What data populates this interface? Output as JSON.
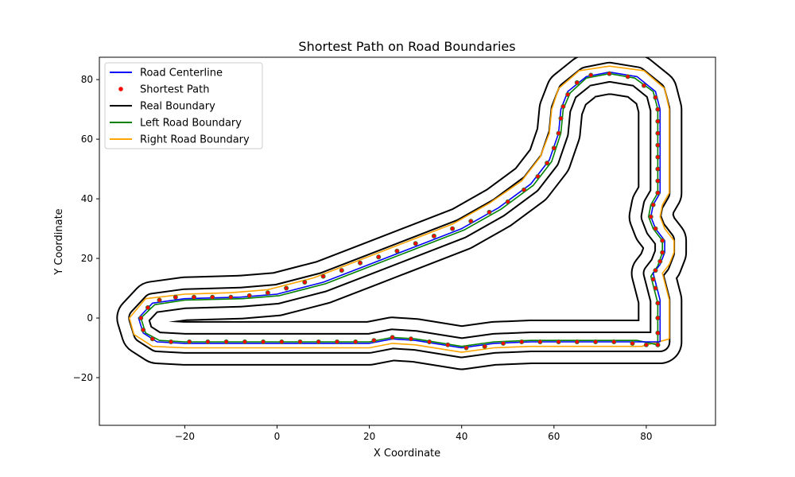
{
  "chart_data": {
    "type": "line",
    "title": "Shortest Path on Road Boundaries",
    "xlabel": "X Coordinate",
    "ylabel": "Y Coordinate",
    "xlim": [
      -38.5,
      95
    ],
    "ylim": [
      -36,
      87.5
    ],
    "xticks": [
      -20,
      0,
      20,
      40,
      60,
      80
    ],
    "yticks": [
      -20,
      0,
      20,
      40,
      60,
      80
    ],
    "xtick_labels": [
      "−20",
      "0",
      "20",
      "40",
      "60",
      "80"
    ],
    "ytick_labels": [
      "−20",
      "0",
      "20",
      "40",
      "60",
      "80"
    ],
    "grid": false,
    "legend_position": "upper-left",
    "colors": {
      "centerline": "#0000ff",
      "shortest_path_fill": "#ff0000",
      "shortest_path_edge": "#2e7d32",
      "real_boundary": "#000000",
      "left_boundary": "#008000",
      "right_boundary": "#ffa500"
    },
    "legend": [
      {
        "label": "Road Centerline",
        "key": "centerline",
        "kind": "line"
      },
      {
        "label": "Shortest Path",
        "key": "shortest_path_fill",
        "kind": "marker"
      },
      {
        "label": "Real Boundary",
        "key": "real_boundary",
        "kind": "line"
      },
      {
        "label": "Left Road Boundary",
        "key": "left_boundary",
        "kind": "line"
      },
      {
        "label": "Right Road Boundary",
        "key": "right_boundary",
        "kind": "line"
      }
    ],
    "series": [
      {
        "name": "Road Centerline",
        "key": "centerline",
        "points": [
          [
            83,
            -8
          ],
          [
            83,
            0
          ],
          [
            83,
            6
          ],
          [
            82,
            12
          ],
          [
            81.5,
            15
          ],
          [
            83,
            18
          ],
          [
            84,
            22
          ],
          [
            84,
            26
          ],
          [
            82,
            30
          ],
          [
            81,
            34
          ],
          [
            81.5,
            38
          ],
          [
            83,
            42
          ],
          [
            83,
            50
          ],
          [
            83,
            60
          ],
          [
            83,
            70
          ],
          [
            82,
            76
          ],
          [
            78,
            81
          ],
          [
            72,
            82.5
          ],
          [
            67,
            81
          ],
          [
            63,
            76
          ],
          [
            61.5,
            70
          ],
          [
            61,
            62
          ],
          [
            59,
            53
          ],
          [
            55,
            45
          ],
          [
            48,
            37
          ],
          [
            40,
            30
          ],
          [
            30,
            24
          ],
          [
            20,
            18
          ],
          [
            10,
            12
          ],
          [
            0,
            8
          ],
          [
            -8,
            7
          ],
          [
            -20,
            6.5
          ],
          [
            -27,
            5
          ],
          [
            -30,
            0
          ],
          [
            -29,
            -5
          ],
          [
            -26,
            -8
          ],
          [
            -20,
            -8.5
          ],
          [
            0,
            -8.5
          ],
          [
            20,
            -8.5
          ],
          [
            25,
            -7
          ],
          [
            30,
            -7.5
          ],
          [
            40,
            -10
          ],
          [
            47,
            -8.5
          ],
          [
            55,
            -8
          ],
          [
            70,
            -8
          ],
          [
            78,
            -8
          ],
          [
            83,
            -8
          ]
        ]
      },
      {
        "name": "Left Road Boundary",
        "key": "left_boundary",
        "points": [
          [
            82.5,
            -9
          ],
          [
            82.5,
            0
          ],
          [
            82.5,
            5
          ],
          [
            81.5,
            11
          ],
          [
            81,
            14
          ],
          [
            82.5,
            17.5
          ],
          [
            83.5,
            22
          ],
          [
            83.5,
            26
          ],
          [
            81.5,
            30
          ],
          [
            80.5,
            34
          ],
          [
            81,
            38
          ],
          [
            82.5,
            42
          ],
          [
            82.5,
            50
          ],
          [
            82.5,
            60
          ],
          [
            82.5,
            70
          ],
          [
            81.5,
            76
          ],
          [
            77.5,
            80.5
          ],
          [
            72,
            82
          ],
          [
            67,
            80.5
          ],
          [
            63.5,
            75.5
          ],
          [
            62,
            70
          ],
          [
            61.5,
            62
          ],
          [
            59.5,
            52.5
          ],
          [
            55.5,
            44.5
          ],
          [
            48.5,
            36.5
          ],
          [
            40.5,
            29.5
          ],
          [
            30.5,
            23.5
          ],
          [
            20.5,
            17.5
          ],
          [
            10.5,
            11.5
          ],
          [
            0.5,
            7.5
          ],
          [
            -7.5,
            6.5
          ],
          [
            -20,
            6
          ],
          [
            -26.5,
            4.5
          ],
          [
            -29.5,
            0
          ],
          [
            -28.5,
            -5
          ],
          [
            -25.5,
            -7.5
          ],
          [
            -20,
            -8
          ],
          [
            0,
            -8
          ],
          [
            20,
            -8
          ],
          [
            25,
            -6.5
          ],
          [
            30,
            -7
          ],
          [
            40,
            -9.5
          ],
          [
            47,
            -8
          ],
          [
            55,
            -7.5
          ],
          [
            70,
            -7.5
          ],
          [
            78,
            -7.5
          ],
          [
            82.5,
            -9
          ]
        ]
      },
      {
        "name": "Right Road Boundary",
        "key": "right_boundary",
        "points": [
          [
            85,
            -7
          ],
          [
            85,
            0
          ],
          [
            85,
            6
          ],
          [
            84,
            12
          ],
          [
            83.5,
            15
          ],
          [
            85,
            18
          ],
          [
            86,
            22
          ],
          [
            86,
            26
          ],
          [
            84,
            30
          ],
          [
            83,
            34
          ],
          [
            83.5,
            38
          ],
          [
            85,
            42
          ],
          [
            85,
            50
          ],
          [
            85,
            60
          ],
          [
            85,
            70
          ],
          [
            84,
            77
          ],
          [
            79.5,
            83
          ],
          [
            72,
            84.5
          ],
          [
            65.5,
            83
          ],
          [
            61,
            77
          ],
          [
            59.5,
            70
          ],
          [
            59,
            62
          ],
          [
            57,
            54
          ],
          [
            53,
            46
          ],
          [
            46,
            38.5
          ],
          [
            38,
            31.5
          ],
          [
            28,
            25.5
          ],
          [
            18,
            19.5
          ],
          [
            8,
            13.5
          ],
          [
            -2,
            9.5
          ],
          [
            -10,
            8.5
          ],
          [
            -20,
            8
          ],
          [
            -28.5,
            6.5
          ],
          [
            -32,
            0
          ],
          [
            -31,
            -5.5
          ],
          [
            -27,
            -9.5
          ],
          [
            -20,
            -10
          ],
          [
            0,
            -10
          ],
          [
            20,
            -10
          ],
          [
            25,
            -8.5
          ],
          [
            30,
            -9
          ],
          [
            40,
            -11.5
          ],
          [
            47,
            -10
          ],
          [
            55,
            -9.5
          ],
          [
            70,
            -9.5
          ],
          [
            79,
            -9.5
          ],
          [
            85,
            -7
          ]
        ]
      }
    ],
    "shortest_path": [
      [
        82.5,
        -9
      ],
      [
        82.5,
        -5
      ],
      [
        82.5,
        0
      ],
      [
        82.5,
        5
      ],
      [
        82,
        10
      ],
      [
        81.5,
        13
      ],
      [
        82,
        16
      ],
      [
        83,
        19
      ],
      [
        83.5,
        22
      ],
      [
        83.5,
        26
      ],
      [
        82,
        30
      ],
      [
        81,
        34
      ],
      [
        81.5,
        38
      ],
      [
        82.5,
        42
      ],
      [
        82.5,
        46
      ],
      [
        82.5,
        50
      ],
      [
        82.5,
        54
      ],
      [
        82.5,
        58
      ],
      [
        82.5,
        62
      ],
      [
        82.5,
        66
      ],
      [
        82.5,
        70
      ],
      [
        82,
        74
      ],
      [
        79.5,
        78
      ],
      [
        76,
        81
      ],
      [
        72,
        82
      ],
      [
        68,
        81.5
      ],
      [
        65,
        79
      ],
      [
        63,
        75
      ],
      [
        62,
        71
      ],
      [
        61.5,
        67
      ],
      [
        61,
        62
      ],
      [
        60,
        57
      ],
      [
        58.5,
        52
      ],
      [
        56.5,
        47.5
      ],
      [
        53.5,
        43
      ],
      [
        50,
        39
      ],
      [
        46,
        35.5
      ],
      [
        42,
        32.5
      ],
      [
        38,
        30
      ],
      [
        34,
        27.5
      ],
      [
        30,
        25
      ],
      [
        26,
        22.5
      ],
      [
        22,
        20.5
      ],
      [
        18,
        18.5
      ],
      [
        14,
        16
      ],
      [
        10,
        14
      ],
      [
        6,
        12
      ],
      [
        2,
        10
      ],
      [
        -2,
        8.5
      ],
      [
        -6,
        7.5
      ],
      [
        -10,
        7
      ],
      [
        -14,
        7
      ],
      [
        -18,
        7
      ],
      [
        -22,
        7
      ],
      [
        -25.5,
        6
      ],
      [
        -28,
        3.5
      ],
      [
        -29.5,
        0
      ],
      [
        -29,
        -4
      ],
      [
        -27,
        -7
      ],
      [
        -23,
        -8
      ],
      [
        -19,
        -8
      ],
      [
        -15,
        -8
      ],
      [
        -11,
        -8
      ],
      [
        -7,
        -8
      ],
      [
        -3,
        -8
      ],
      [
        1,
        -8
      ],
      [
        5,
        -8
      ],
      [
        9,
        -8
      ],
      [
        13,
        -8
      ],
      [
        17,
        -8
      ],
      [
        21,
        -7.5
      ],
      [
        25,
        -6.5
      ],
      [
        29,
        -7
      ],
      [
        33,
        -8
      ],
      [
        37,
        -9
      ],
      [
        41,
        -10
      ],
      [
        45,
        -9.5
      ],
      [
        49,
        -8.5
      ],
      [
        53,
        -8
      ],
      [
        57,
        -8
      ],
      [
        61,
        -8
      ],
      [
        65,
        -8
      ],
      [
        69,
        -8
      ],
      [
        73,
        -8
      ],
      [
        77,
        -8.5
      ],
      [
        80,
        -9
      ],
      [
        82.5,
        -9
      ]
    ]
  }
}
